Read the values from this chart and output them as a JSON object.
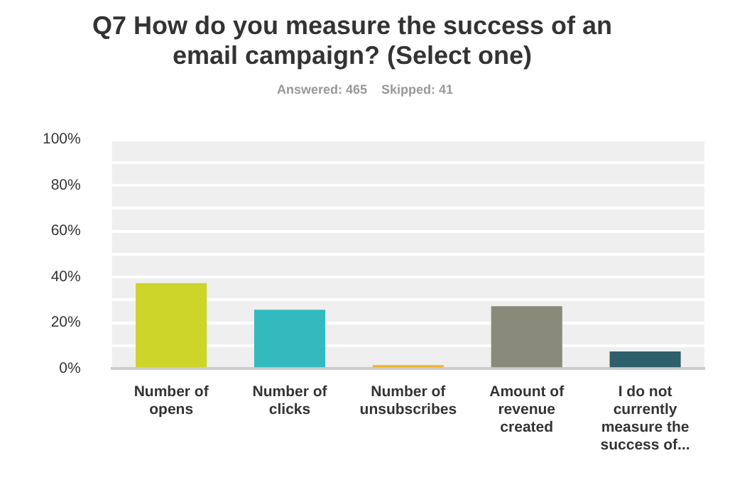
{
  "chart_data": {
    "type": "bar",
    "title": "Q7 How do you measure the success of an email campaign? (Select one)",
    "subtitle": "Answered: 465    Skipped: 41",
    "categories": [
      "Number of opens",
      "Number of clicks",
      "Number of unsubscribes",
      "Amount of revenue created",
      "I do not currently measure the success of..."
    ],
    "values": [
      37.3,
      25.7,
      1.5,
      27.3,
      7.5
    ],
    "colors": [
      "#cdd42a",
      "#33babe",
      "#f0b429",
      "#8a8a7a",
      "#2e5f6b"
    ],
    "ylim": [
      0,
      100
    ],
    "yticks": [
      {
        "value": 0,
        "label": "0%"
      },
      {
        "value": 10,
        "label": null
      },
      {
        "value": 20,
        "label": "20%"
      },
      {
        "value": 30,
        "label": null
      },
      {
        "value": 40,
        "label": "40%"
      },
      {
        "value": 50,
        "label": null
      },
      {
        "value": 60,
        "label": "60%"
      },
      {
        "value": 70,
        "label": null
      },
      {
        "value": 80,
        "label": "80%"
      },
      {
        "value": 90,
        "label": null
      },
      {
        "value": 100,
        "label": "100%"
      }
    ],
    "grid": "y",
    "legend": false
  }
}
